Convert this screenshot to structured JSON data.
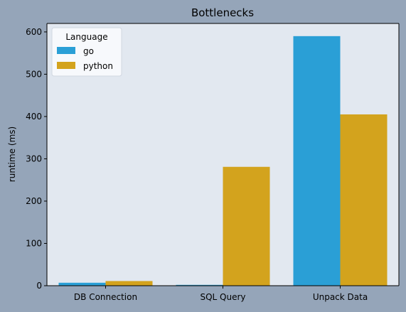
{
  "chart_data": {
    "type": "bar",
    "title": "Bottlenecks",
    "xlabel": "",
    "ylabel": "runtime (ms)",
    "categories": [
      "DB Connection",
      "SQL Query",
      "Unpack Data"
    ],
    "series": [
      {
        "name": "go",
        "values": [
          7,
          2,
          590
        ],
        "color": "#2a9fd6"
      },
      {
        "name": "python",
        "values": [
          11,
          281,
          405
        ],
        "color": "#d3a31d"
      }
    ],
    "ylim": [
      0,
      620
    ],
    "yticks": [
      0,
      100,
      200,
      300,
      400,
      500,
      600
    ],
    "legend": {
      "title": "Language",
      "placement": "top-left"
    },
    "grid": false,
    "colors": {
      "figure_background": "#95a5b9",
      "plot_background": "#e2e8f0",
      "legend_background": "#f7f9fc"
    }
  }
}
